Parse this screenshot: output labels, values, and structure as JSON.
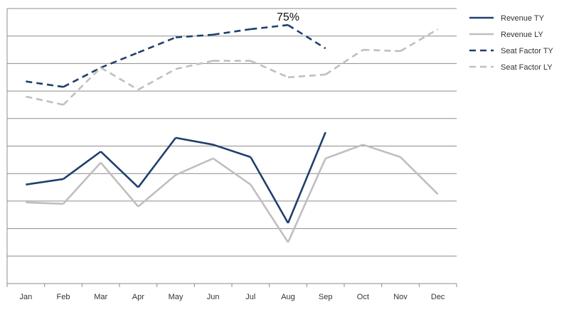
{
  "chart_data": {
    "type": "line",
    "categories": [
      "Jan",
      "Feb",
      "Mar",
      "Apr",
      "May",
      "Jun",
      "Jul",
      "Aug",
      "Sep",
      "Oct",
      "Nov",
      "Dec"
    ],
    "ylim": [
      0,
      10
    ],
    "grid": true,
    "legend_position": "top-right",
    "series": [
      {
        "name": "Revenue TY",
        "style": "solid",
        "color": "#1F3F6E",
        "values": [
          3.6,
          3.8,
          4.8,
          3.5,
          5.3,
          5.05,
          4.6,
          2.2,
          5.5,
          null,
          null,
          null
        ]
      },
      {
        "name": "Revenue LY",
        "style": "solid",
        "color": "#BFBFBF",
        "values": [
          2.95,
          2.9,
          4.4,
          2.8,
          3.95,
          4.55,
          3.6,
          1.5,
          4.55,
          5.05,
          4.6,
          3.25
        ]
      },
      {
        "name": "Seat Factor TY",
        "style": "dashed",
        "color": "#1F3F6E",
        "values": [
          7.35,
          7.15,
          7.85,
          8.4,
          8.95,
          9.05,
          9.25,
          9.4,
          8.55,
          null,
          null,
          null
        ]
      },
      {
        "name": "Seat Factor LY",
        "style": "dashed",
        "color": "#BFBFBF",
        "values": [
          6.8,
          6.5,
          7.85,
          7.05,
          7.8,
          8.1,
          8.1,
          7.5,
          7.6,
          8.5,
          8.45,
          9.25
        ]
      }
    ],
    "annotations": [
      {
        "text": "75%",
        "series": "Seat Factor TY",
        "category": "Aug"
      }
    ]
  }
}
